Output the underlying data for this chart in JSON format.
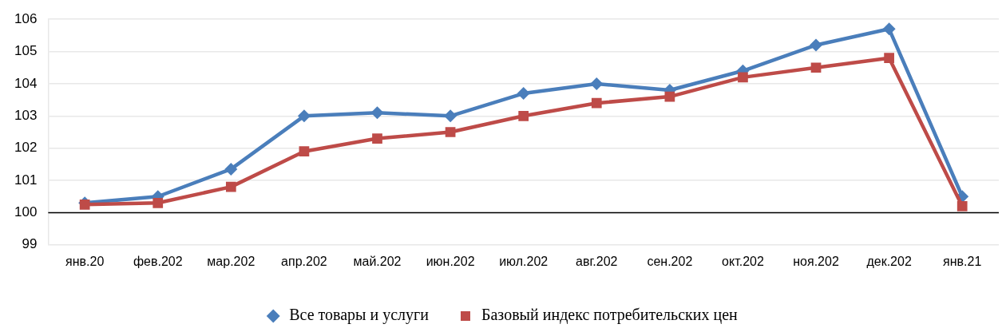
{
  "chart_data": {
    "type": "line",
    "categories": [
      "янв.20",
      "фев.202",
      "мар.202",
      "апр.202",
      "май.202",
      "июн.202",
      "июл.202",
      "авг.202",
      "сен.202",
      "окт.202",
      "ноя.202",
      "дек.202",
      "янв.21"
    ],
    "series": [
      {
        "name": "Все товары и услуги",
        "color": "#4a7ebb",
        "marker": "diamond",
        "values": [
          100.3,
          100.5,
          101.35,
          103.0,
          103.1,
          103.0,
          103.7,
          104.0,
          103.8,
          104.4,
          105.2,
          105.7,
          100.5
        ]
      },
      {
        "name": "Базовый индекс потребительских цен",
        "color": "#be4b48",
        "marker": "square",
        "values": [
          100.25,
          100.3,
          100.8,
          101.9,
          102.3,
          102.5,
          103.0,
          103.4,
          103.6,
          104.2,
          104.5,
          104.8,
          100.2
        ]
      }
    ],
    "ylim": [
      99,
      106
    ],
    "yticks": [
      99,
      100,
      101,
      102,
      103,
      104,
      105,
      106
    ],
    "grid": "y",
    "legend": "bottom",
    "line_style": "solid",
    "ref_lines": [
      {
        "axis": "y",
        "value": 100,
        "color": "#000000"
      }
    ]
  }
}
